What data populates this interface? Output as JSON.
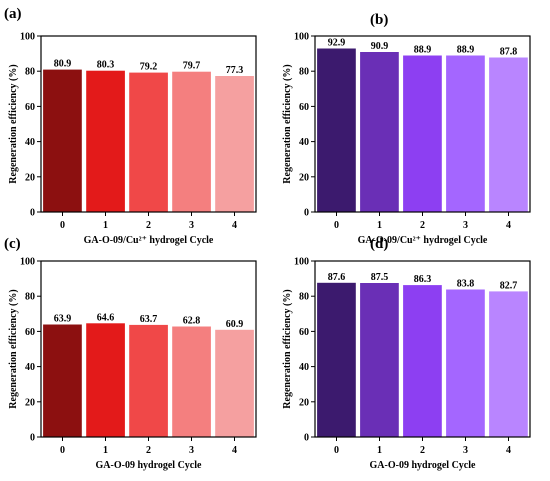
{
  "figure": {
    "panels": [
      {
        "label": "(a)",
        "xlabel": "GA-O-09/Cu²⁺ hydrogel Cycle",
        "ylabel": "Regeneration efficiency (%)"
      },
      {
        "label": "(b)",
        "xlabel": "GA-O-09/Cu²⁺ hydrogel Cycle",
        "ylabel": "Regeneration efficiency (%)"
      },
      {
        "label": "(c)",
        "xlabel": "GA-O-09 hydrogel Cycle",
        "ylabel": "Regeneration efficiency (%)"
      },
      {
        "label": "(d)",
        "xlabel": "GA-O-09 hydrogel Cycle",
        "ylabel": "Regeneration efficiency (%)"
      }
    ]
  },
  "chart_data": [
    {
      "type": "bar",
      "title": "(a)",
      "xlabel": "GA-O-09/Cu²⁺ hydrogel Cycle",
      "ylabel": "Regeneration efficiency (%)",
      "categories": [
        "0",
        "1",
        "2",
        "3",
        "4"
      ],
      "values": [
        80.9,
        80.3,
        79.2,
        79.7,
        77.3
      ],
      "data_labels": [
        "80.9",
        "80.3",
        "79.2",
        "79.7",
        "77.3"
      ],
      "ylim": [
        0,
        100
      ],
      "yticks": [
        0,
        20,
        40,
        60,
        80,
        100
      ],
      "bar_colors": [
        "#8c1010",
        "#e31a1a",
        "#f04848",
        "#f47f7f",
        "#f5a0a0"
      ]
    },
    {
      "type": "bar",
      "title": "(b)",
      "xlabel": "GA-O-09/Cu²⁺ hydrogel Cycle",
      "ylabel": "Regeneration efficiency (%)",
      "categories": [
        "0",
        "1",
        "2",
        "3",
        "4"
      ],
      "values": [
        92.9,
        90.9,
        88.9,
        88.9,
        87.8
      ],
      "data_labels": [
        "92.9",
        "90.9",
        "88.9",
        "88.9",
        "87.8"
      ],
      "ylim": [
        0,
        100
      ],
      "yticks": [
        0,
        20,
        40,
        60,
        80,
        100
      ],
      "bar_colors": [
        "#3c1a6e",
        "#6a2fb6",
        "#8d3ff2",
        "#a466ff",
        "#b985ff"
      ]
    },
    {
      "type": "bar",
      "title": "(c)",
      "xlabel": "GA-O-09 hydrogel Cycle",
      "ylabel": "Regeneration efficiency (%)",
      "categories": [
        "0",
        "1",
        "2",
        "3",
        "4"
      ],
      "values": [
        63.9,
        64.6,
        63.7,
        62.8,
        60.9
      ],
      "data_labels": [
        "63.9",
        "64.6",
        "63.7",
        "62.8",
        "60.9"
      ],
      "ylim": [
        0,
        100
      ],
      "yticks": [
        0,
        20,
        40,
        60,
        80,
        100
      ],
      "bar_colors": [
        "#8c1010",
        "#e31a1a",
        "#f04848",
        "#f47f7f",
        "#f5a0a0"
      ]
    },
    {
      "type": "bar",
      "title": "(d)",
      "xlabel": "GA-O-09 hydrogel Cycle",
      "ylabel": "Regeneration efficiency (%)",
      "categories": [
        "0",
        "1",
        "2",
        "3",
        "4"
      ],
      "values": [
        87.6,
        87.5,
        86.3,
        83.8,
        82.7
      ],
      "data_labels": [
        "87.6",
        "87.5",
        "86.3",
        "83.8",
        "82.7"
      ],
      "ylim": [
        0,
        100
      ],
      "yticks": [
        0,
        20,
        40,
        60,
        80,
        100
      ],
      "bar_colors": [
        "#3c1a6e",
        "#6a2fb6",
        "#8d3ff2",
        "#a466ff",
        "#b985ff"
      ]
    }
  ]
}
